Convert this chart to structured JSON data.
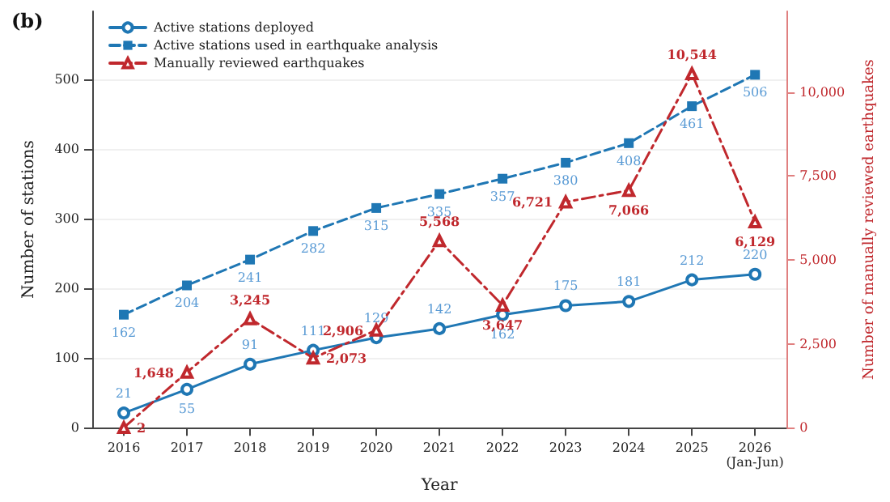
{
  "chart_data": {
    "type": "line",
    "title": "(b)",
    "xlabel": "Year",
    "ylabel": "Number of stations",
    "y2label": "Number of manually reviewed earthquakes",
    "categories": [
      "2016",
      "2017",
      "2018",
      "2019",
      "2020",
      "2021",
      "2022",
      "2023",
      "2024",
      "2025",
      "2026\n(Jan-Jun)"
    ],
    "series": [
      {
        "name": "Active stations deployed",
        "color": "#1f77b4",
        "marker": "circle",
        "line_style": "solid",
        "values": [
          21,
          55,
          91,
          111,
          129,
          142,
          162,
          175,
          181,
          212,
          220
        ],
        "value_labels": [
          "21",
          "55",
          "91",
          "111",
          "129",
          "142",
          "162",
          "175",
          "181",
          "212",
          "220"
        ]
      },
      {
        "name": "Active stations used in earthquake analysis",
        "color": "#1f77b4",
        "marker": "square",
        "line_style": "dashed",
        "values": [
          162,
          204,
          241,
          282,
          315,
          335,
          357,
          380,
          408,
          461,
          506
        ],
        "value_labels": [
          "162",
          "204",
          "241",
          "282",
          "315",
          "335",
          "357",
          "380",
          "408",
          "461",
          "506"
        ]
      },
      {
        "name": "Manually reviewed earthquakes",
        "color": "#c0282d",
        "marker": "triangle",
        "line_style": "dashed",
        "axis": "y2",
        "values": [
          2,
          1648,
          3245,
          2073,
          2906,
          5568,
          3647,
          6721,
          7066,
          10544,
          6129
        ],
        "value_labels": [
          "2",
          "1,648",
          "3,245",
          "2,073",
          "2,906",
          "5,568",
          "3,647",
          "6,721",
          "7,066",
          "10,544",
          "6,129"
        ]
      }
    ],
    "ylim": [
      0,
      597
    ],
    "yticks": [
      0,
      100,
      200,
      300,
      400,
      500
    ],
    "y2lim": [
      0,
      12400
    ],
    "y2ticks": [
      {
        "value": 0,
        "label": "0"
      },
      {
        "value": 2500,
        "label": "2,500"
      },
      {
        "value": 5000,
        "label": "5,000"
      },
      {
        "value": 7500,
        "label": "7,500"
      },
      {
        "value": 10000,
        "label": "10,000"
      }
    ],
    "grid": "y",
    "legend": "top left"
  }
}
